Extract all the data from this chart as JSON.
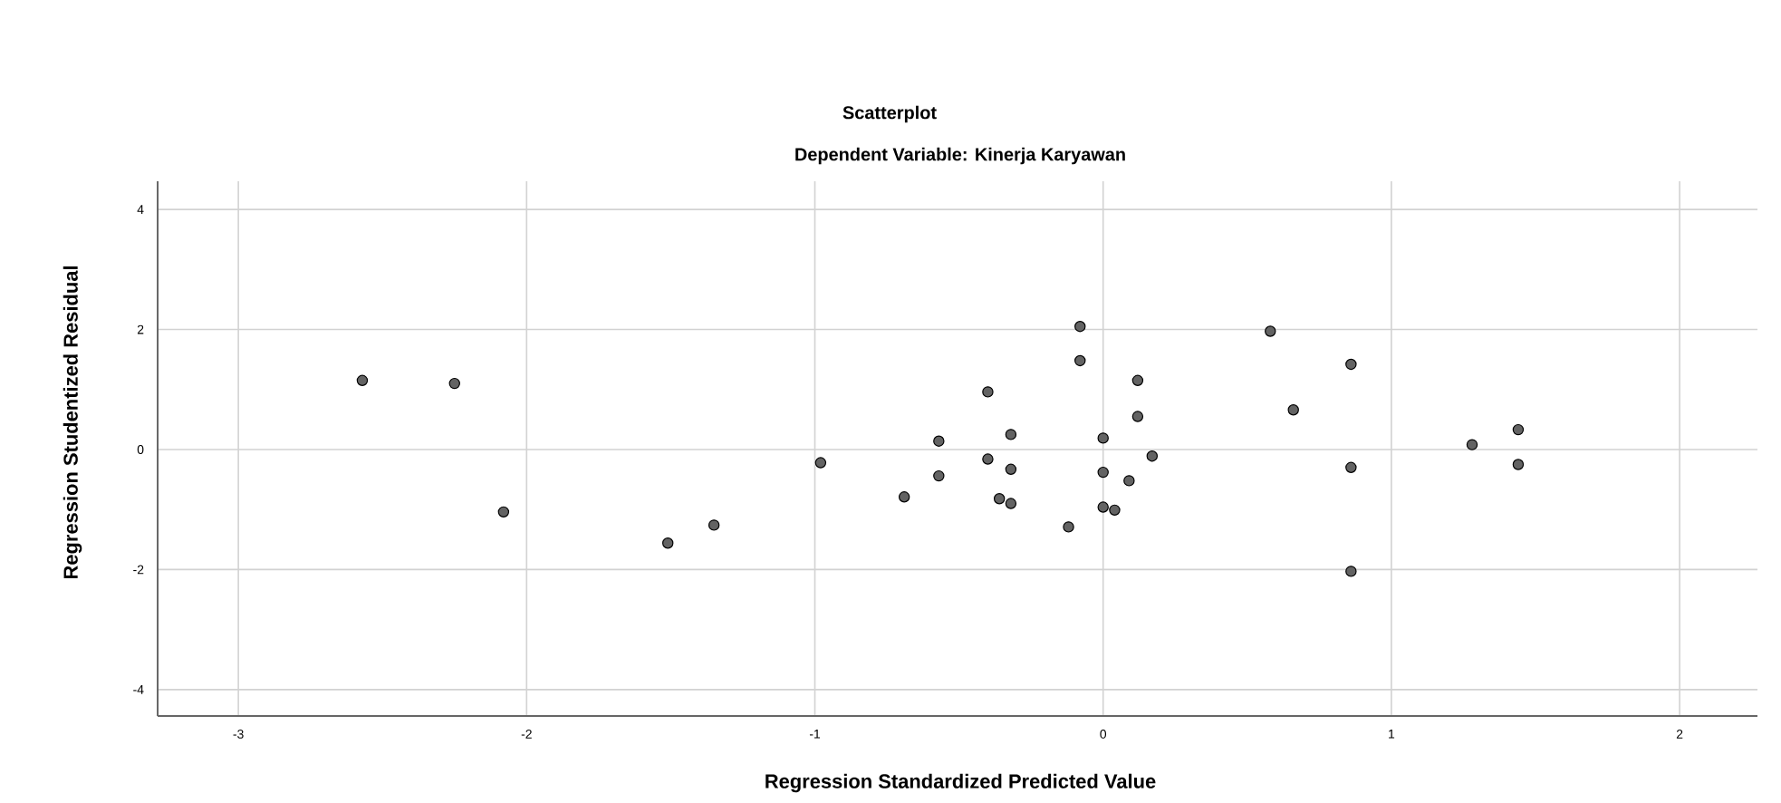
{
  "chart_data": {
    "type": "scatter",
    "title": "Scatterplot",
    "subtitle": "Dependent Variable: Kinerja Karyawan",
    "xlabel": "Regression Standardized Predicted Value",
    "ylabel": "Regression Studentized Residual",
    "x": [
      -2.57,
      -2.25,
      -2.08,
      -1.51,
      -1.35,
      -0.98,
      -0.69,
      -0.57,
      -0.57,
      -0.4,
      -0.4,
      -0.36,
      -0.32,
      -0.32,
      -0.32,
      -0.12,
      -0.08,
      -0.08,
      0.0,
      0.0,
      0.0,
      0.04,
      0.09,
      0.12,
      0.12,
      0.17,
      0.58,
      0.66,
      0.86,
      0.86,
      0.86,
      1.28,
      1.44,
      1.44
    ],
    "values": [
      1.15,
      1.1,
      -1.04,
      -1.56,
      -1.26,
      -0.22,
      -0.79,
      0.14,
      -0.44,
      0.96,
      -0.16,
      -0.82,
      0.25,
      -0.33,
      -0.9,
      -1.29,
      2.05,
      1.48,
      0.19,
      -0.38,
      -0.96,
      -1.01,
      -0.52,
      1.15,
      0.55,
      -0.11,
      1.97,
      0.66,
      1.42,
      -0.3,
      -2.03,
      0.08,
      0.33,
      -0.25
    ],
    "color": "#636363",
    "xlim": [
      -3.28,
      2.27
    ],
    "ylim": [
      -4.44,
      4.47
    ],
    "xticks": [
      -3,
      -2,
      -1,
      0,
      1,
      2
    ],
    "yticks": [
      -4,
      -2,
      0,
      2,
      4
    ],
    "grid": true
  }
}
